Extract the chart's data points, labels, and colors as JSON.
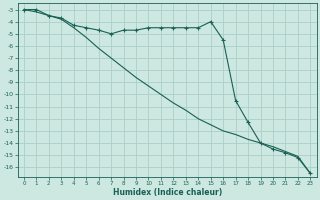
{
  "xlabel": "Humidex (Indice chaleur)",
  "background_color": "#cce8e0",
  "grid_color": "#aacfc8",
  "line_color": "#1a6055",
  "x": [
    0,
    1,
    2,
    3,
    4,
    5,
    6,
    7,
    8,
    9,
    10,
    11,
    12,
    13,
    14,
    15,
    16,
    17,
    18,
    19,
    20,
    21,
    22,
    23
  ],
  "line1_marked": [
    -3.0,
    -3.0,
    -3.5,
    -3.7,
    -4.3,
    -4.5,
    -4.7,
    -5.0,
    -4.7,
    -4.7,
    -4.5,
    -4.5,
    -4.5,
    -4.5,
    -4.5,
    -4.0,
    -5.5,
    -10.5,
    -12.3,
    -14.0,
    -14.5,
    -14.8,
    -15.2,
    -16.5
  ],
  "line2_plain": [
    -3.0,
    -3.2,
    -3.5,
    -3.8,
    -4.5,
    -5.3,
    -6.2,
    -7.0,
    -7.8,
    -8.6,
    -9.3,
    -10.0,
    -10.7,
    -11.3,
    -12.0,
    -12.5,
    -13.0,
    -13.3,
    -13.7,
    -14.0,
    -14.3,
    -14.7,
    -15.1,
    -16.5
  ],
  "ylim": [
    -16.8,
    -2.5
  ],
  "xlim": [
    -0.5,
    23.5
  ],
  "yticks": [
    -3,
    -4,
    -5,
    -6,
    -7,
    -8,
    -9,
    -10,
    -11,
    -12,
    -13,
    -14,
    -15,
    -16
  ],
  "xticks": [
    0,
    1,
    2,
    3,
    4,
    5,
    6,
    7,
    8,
    9,
    10,
    11,
    12,
    13,
    14,
    15,
    16,
    17,
    18,
    19,
    20,
    21,
    22,
    23
  ]
}
